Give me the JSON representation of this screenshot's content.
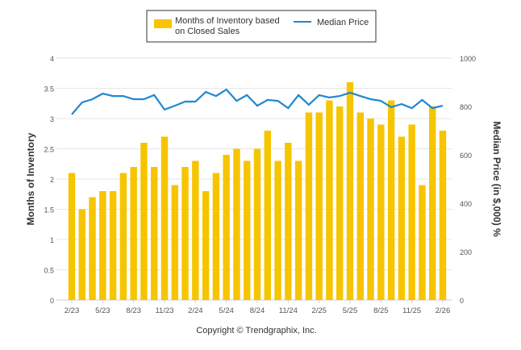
{
  "chart_data": {
    "type": "bar",
    "title": "",
    "categories": [
      "2/23",
      "3/23",
      "4/23",
      "5/23",
      "6/23",
      "7/23",
      "8/23",
      "9/23",
      "10/23",
      "11/23",
      "12/23",
      "1/24",
      "2/24",
      "3/24",
      "4/24",
      "5/24",
      "6/24",
      "7/24",
      "8/24",
      "9/24",
      "10/24",
      "11/24",
      "12/24",
      "1/25",
      "2/25",
      "3/25",
      "4/25",
      "5/25",
      "6/25",
      "7/25",
      "8/25",
      "9/25",
      "10/25",
      "11/25",
      "12/25",
      "1/26",
      "2/26"
    ],
    "x_tick_labels": [
      "2/23",
      "5/23",
      "8/23",
      "11/23",
      "2/24",
      "5/24",
      "8/24",
      "11/24",
      "2/25",
      "5/25",
      "8/25",
      "11/25",
      "2/26"
    ],
    "series": [
      {
        "name": "Months of Inventory based on Closed Sales",
        "type": "bar",
        "axis": "left",
        "color": "#f7c400",
        "values": [
          2.1,
          1.5,
          1.7,
          1.8,
          1.8,
          2.1,
          2.2,
          2.6,
          2.2,
          2.7,
          1.9,
          2.2,
          2.3,
          1.8,
          2.1,
          2.4,
          2.5,
          2.3,
          2.5,
          2.8,
          2.3,
          2.6,
          2.3,
          3.1,
          3.1,
          3.3,
          3.2,
          3.6,
          3.1,
          3.0,
          2.9,
          3.3,
          2.7,
          2.9,
          1.9,
          3.2,
          2.8
        ]
      },
      {
        "name": "Median Price",
        "type": "line",
        "axis": "right",
        "color": "#1f88d0",
        "values": [
          767,
          817,
          830,
          853,
          843,
          843,
          830,
          830,
          847,
          787,
          803,
          820,
          820,
          860,
          843,
          870,
          823,
          847,
          803,
          827,
          823,
          793,
          847,
          807,
          847,
          837,
          843,
          857,
          843,
          830,
          823,
          797,
          810,
          793,
          827,
          793,
          803
        ]
      }
    ],
    "legend": {
      "labels": [
        "Months of Inventory based",
        "on Closed Sales",
        "Median Price"
      ],
      "placement": "top-center"
    },
    "ylabel": "Months of Inventory",
    "y2label": "Median Price (in $,000) %",
    "ylim": [
      0,
      4
    ],
    "y_ticks": [
      "0",
      "0.5",
      "1",
      "1.5",
      "2",
      "2.5",
      "3",
      "3.5",
      "4"
    ],
    "y2lim": [
      0,
      1000
    ],
    "y2_ticks": [
      "0",
      "200",
      "400",
      "600",
      "800",
      "1000"
    ],
    "grid": true
  },
  "footer": {
    "copyright": "Copyright © Trendgraphix, Inc."
  }
}
